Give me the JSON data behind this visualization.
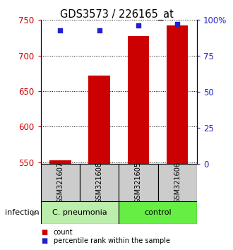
{
  "title": "GDS3573 / 226165_at",
  "samples": [
    "GSM321607",
    "GSM321608",
    "GSM321605",
    "GSM321606"
  ],
  "counts": [
    553,
    672,
    727,
    742
  ],
  "percentiles": [
    93,
    93,
    96,
    97
  ],
  "ylim_left": [
    548,
    750
  ],
  "ylim_right": [
    0,
    100
  ],
  "yticks_left": [
    550,
    600,
    650,
    700,
    750
  ],
  "yticks_right": [
    0,
    25,
    50,
    75,
    100
  ],
  "ytick_labels_right": [
    "0",
    "25",
    "50",
    "75",
    "100%"
  ],
  "bar_color": "#cc0000",
  "marker_color": "#2222cc",
  "bar_width": 0.55,
  "group_bg_color_1": "#bbeeaa",
  "group_bg_color_2": "#66ee44",
  "sample_box_color": "#cccccc",
  "legend_items": [
    {
      "color": "#cc0000",
      "label": "count"
    },
    {
      "color": "#2222cc",
      "label": "percentile rank within the sample"
    }
  ],
  "infection_label": "infection",
  "title_fontsize": 10.5
}
